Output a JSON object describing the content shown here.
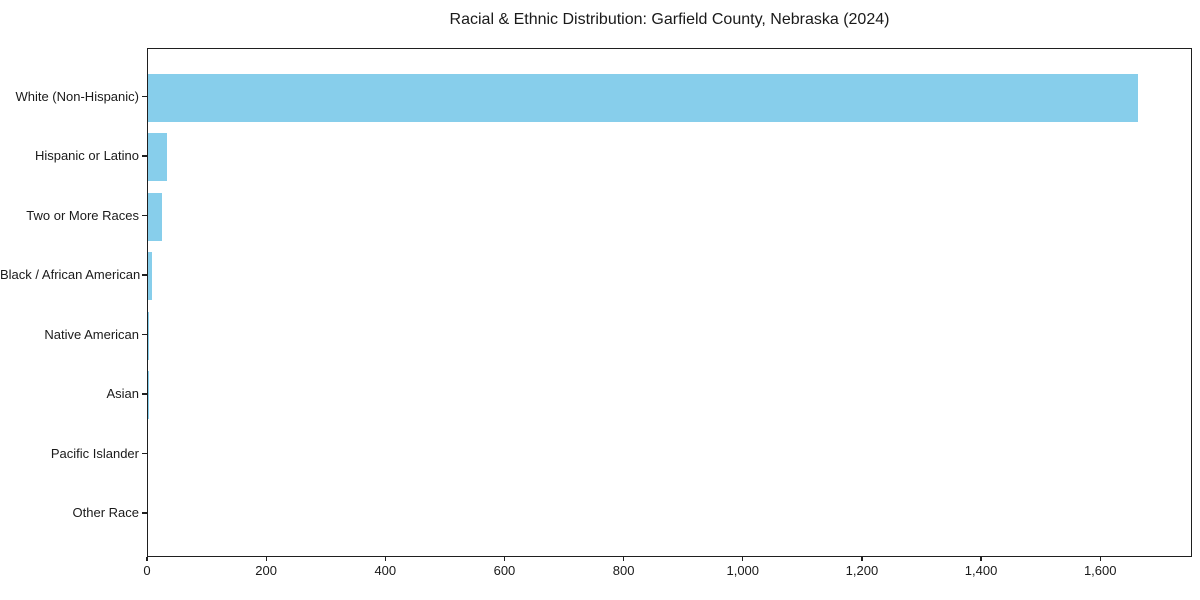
{
  "chart_data": {
    "type": "bar",
    "orientation": "horizontal",
    "title": "Racial & Ethnic Distribution: Garfield County, Nebraska (2024)",
    "categories": [
      "White (Non-Hispanic)",
      "Hispanic or Latino",
      "Two or More Races",
      "Black / African American",
      "Native American",
      "Asian",
      "Pacific Islander",
      "Other Race"
    ],
    "values": [
      1662,
      32,
      23,
      6,
      2,
      1,
      0,
      0
    ],
    "bar_color": "#87CEEB",
    "xlabel": "",
    "ylabel": "",
    "xlim": [
      0,
      1754
    ],
    "x_ticks": [
      0,
      200,
      400,
      600,
      800,
      1000,
      1200,
      1400,
      1600
    ],
    "x_tick_labels": [
      "0",
      "200",
      "400",
      "600",
      "800",
      "1,000",
      "1,200",
      "1,400",
      "1,600"
    ],
    "grid": false,
    "legend_position": "none"
  }
}
